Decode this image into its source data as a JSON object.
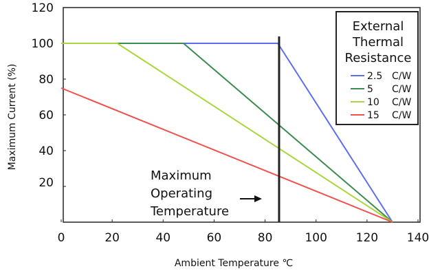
{
  "chart_data": {
    "type": "line",
    "xlabel": "Ambient Temperature ℃",
    "ylabel": "Maximum Current (%)",
    "xlim": [
      0,
      140
    ],
    "ylim": [
      0,
      120
    ],
    "x_ticks": [
      "0",
      "20",
      "40",
      "60",
      "80",
      "100",
      "120",
      "140"
    ],
    "y_ticks": [
      "20",
      "40",
      "60",
      "80",
      "100",
      "120"
    ],
    "legend": {
      "title_lines": [
        "External",
        "Thermal",
        "Resistance"
      ],
      "placement": "top-right",
      "unit": "C/W"
    },
    "series": [
      {
        "name": "2.5",
        "color": "#5b6ef0",
        "points": [
          [
            0,
            100
          ],
          [
            85,
            100
          ],
          [
            130,
            0
          ]
        ]
      },
      {
        "name": "5",
        "color": "#3c8a4e",
        "points": [
          [
            0,
            100
          ],
          [
            48,
            100
          ],
          [
            130,
            0
          ]
        ]
      },
      {
        "name": "10",
        "color": "#a8d63c",
        "points": [
          [
            0,
            100
          ],
          [
            22,
            100
          ],
          [
            130,
            0
          ]
        ]
      },
      {
        "name": "15",
        "color": "#f0504a",
        "points": [
          [
            0,
            75
          ],
          [
            130,
            0
          ]
        ]
      }
    ],
    "vertical_marker": {
      "x": 85.5,
      "color": "#222222"
    },
    "annotation": {
      "lines": [
        "Maximum",
        "Operating",
        "Temperature"
      ],
      "arrow": "right"
    }
  }
}
